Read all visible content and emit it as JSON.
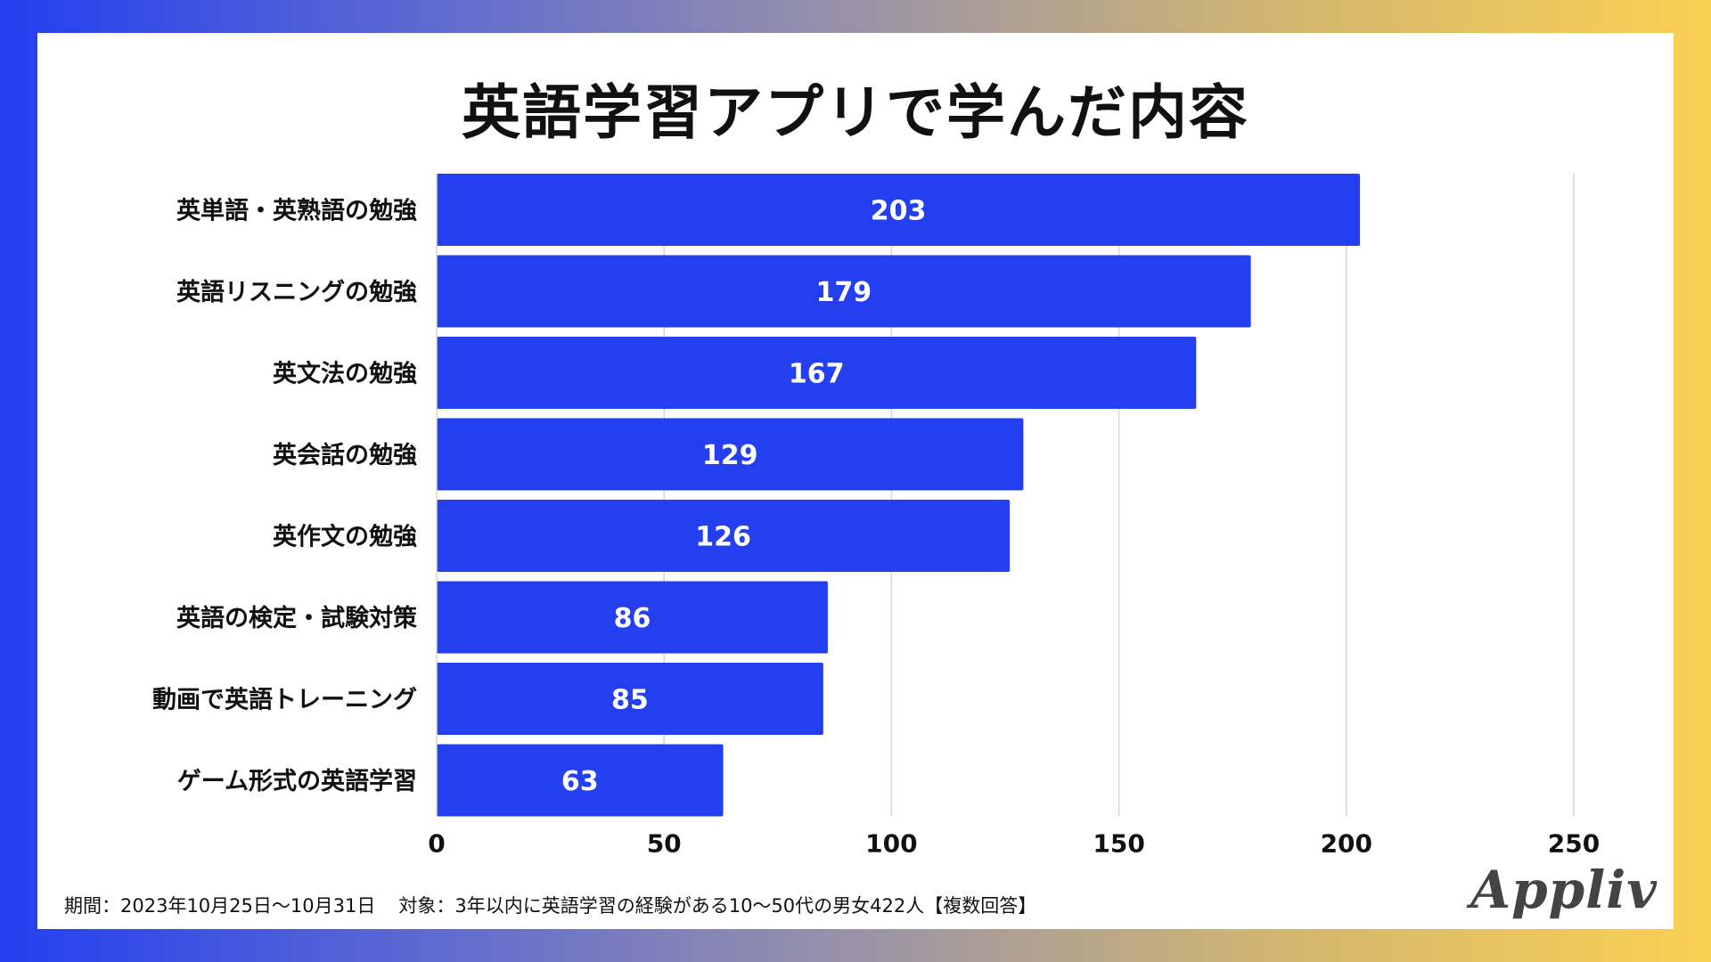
{
  "chart_data": {
    "type": "bar",
    "orientation": "horizontal",
    "title": "英語学習アプリで学んだ内容",
    "categories": [
      "英単語・英熟語の勉強",
      "英語リスニングの勉強",
      "英文法の勉強",
      "英会話の勉強",
      "英作文の勉強",
      "英語の検定・試験対策",
      "動画で英語トレーニング",
      "ゲーム形式の英語学習"
    ],
    "values": [
      203,
      179,
      167,
      129,
      126,
      86,
      85,
      63
    ],
    "xlim": [
      0,
      250
    ],
    "ticks": [
      0,
      50,
      100,
      150,
      200,
      250
    ],
    "grid": true,
    "xlabel": "",
    "ylabel": "",
    "bar_color": "#233ff0"
  },
  "footnote": {
    "period": "期間：2023年10月25日～10月31日",
    "target": "対象：3年以内に英語学習の経験がある10～50代の男女422人【複数回答】"
  },
  "logo": "Appliv"
}
